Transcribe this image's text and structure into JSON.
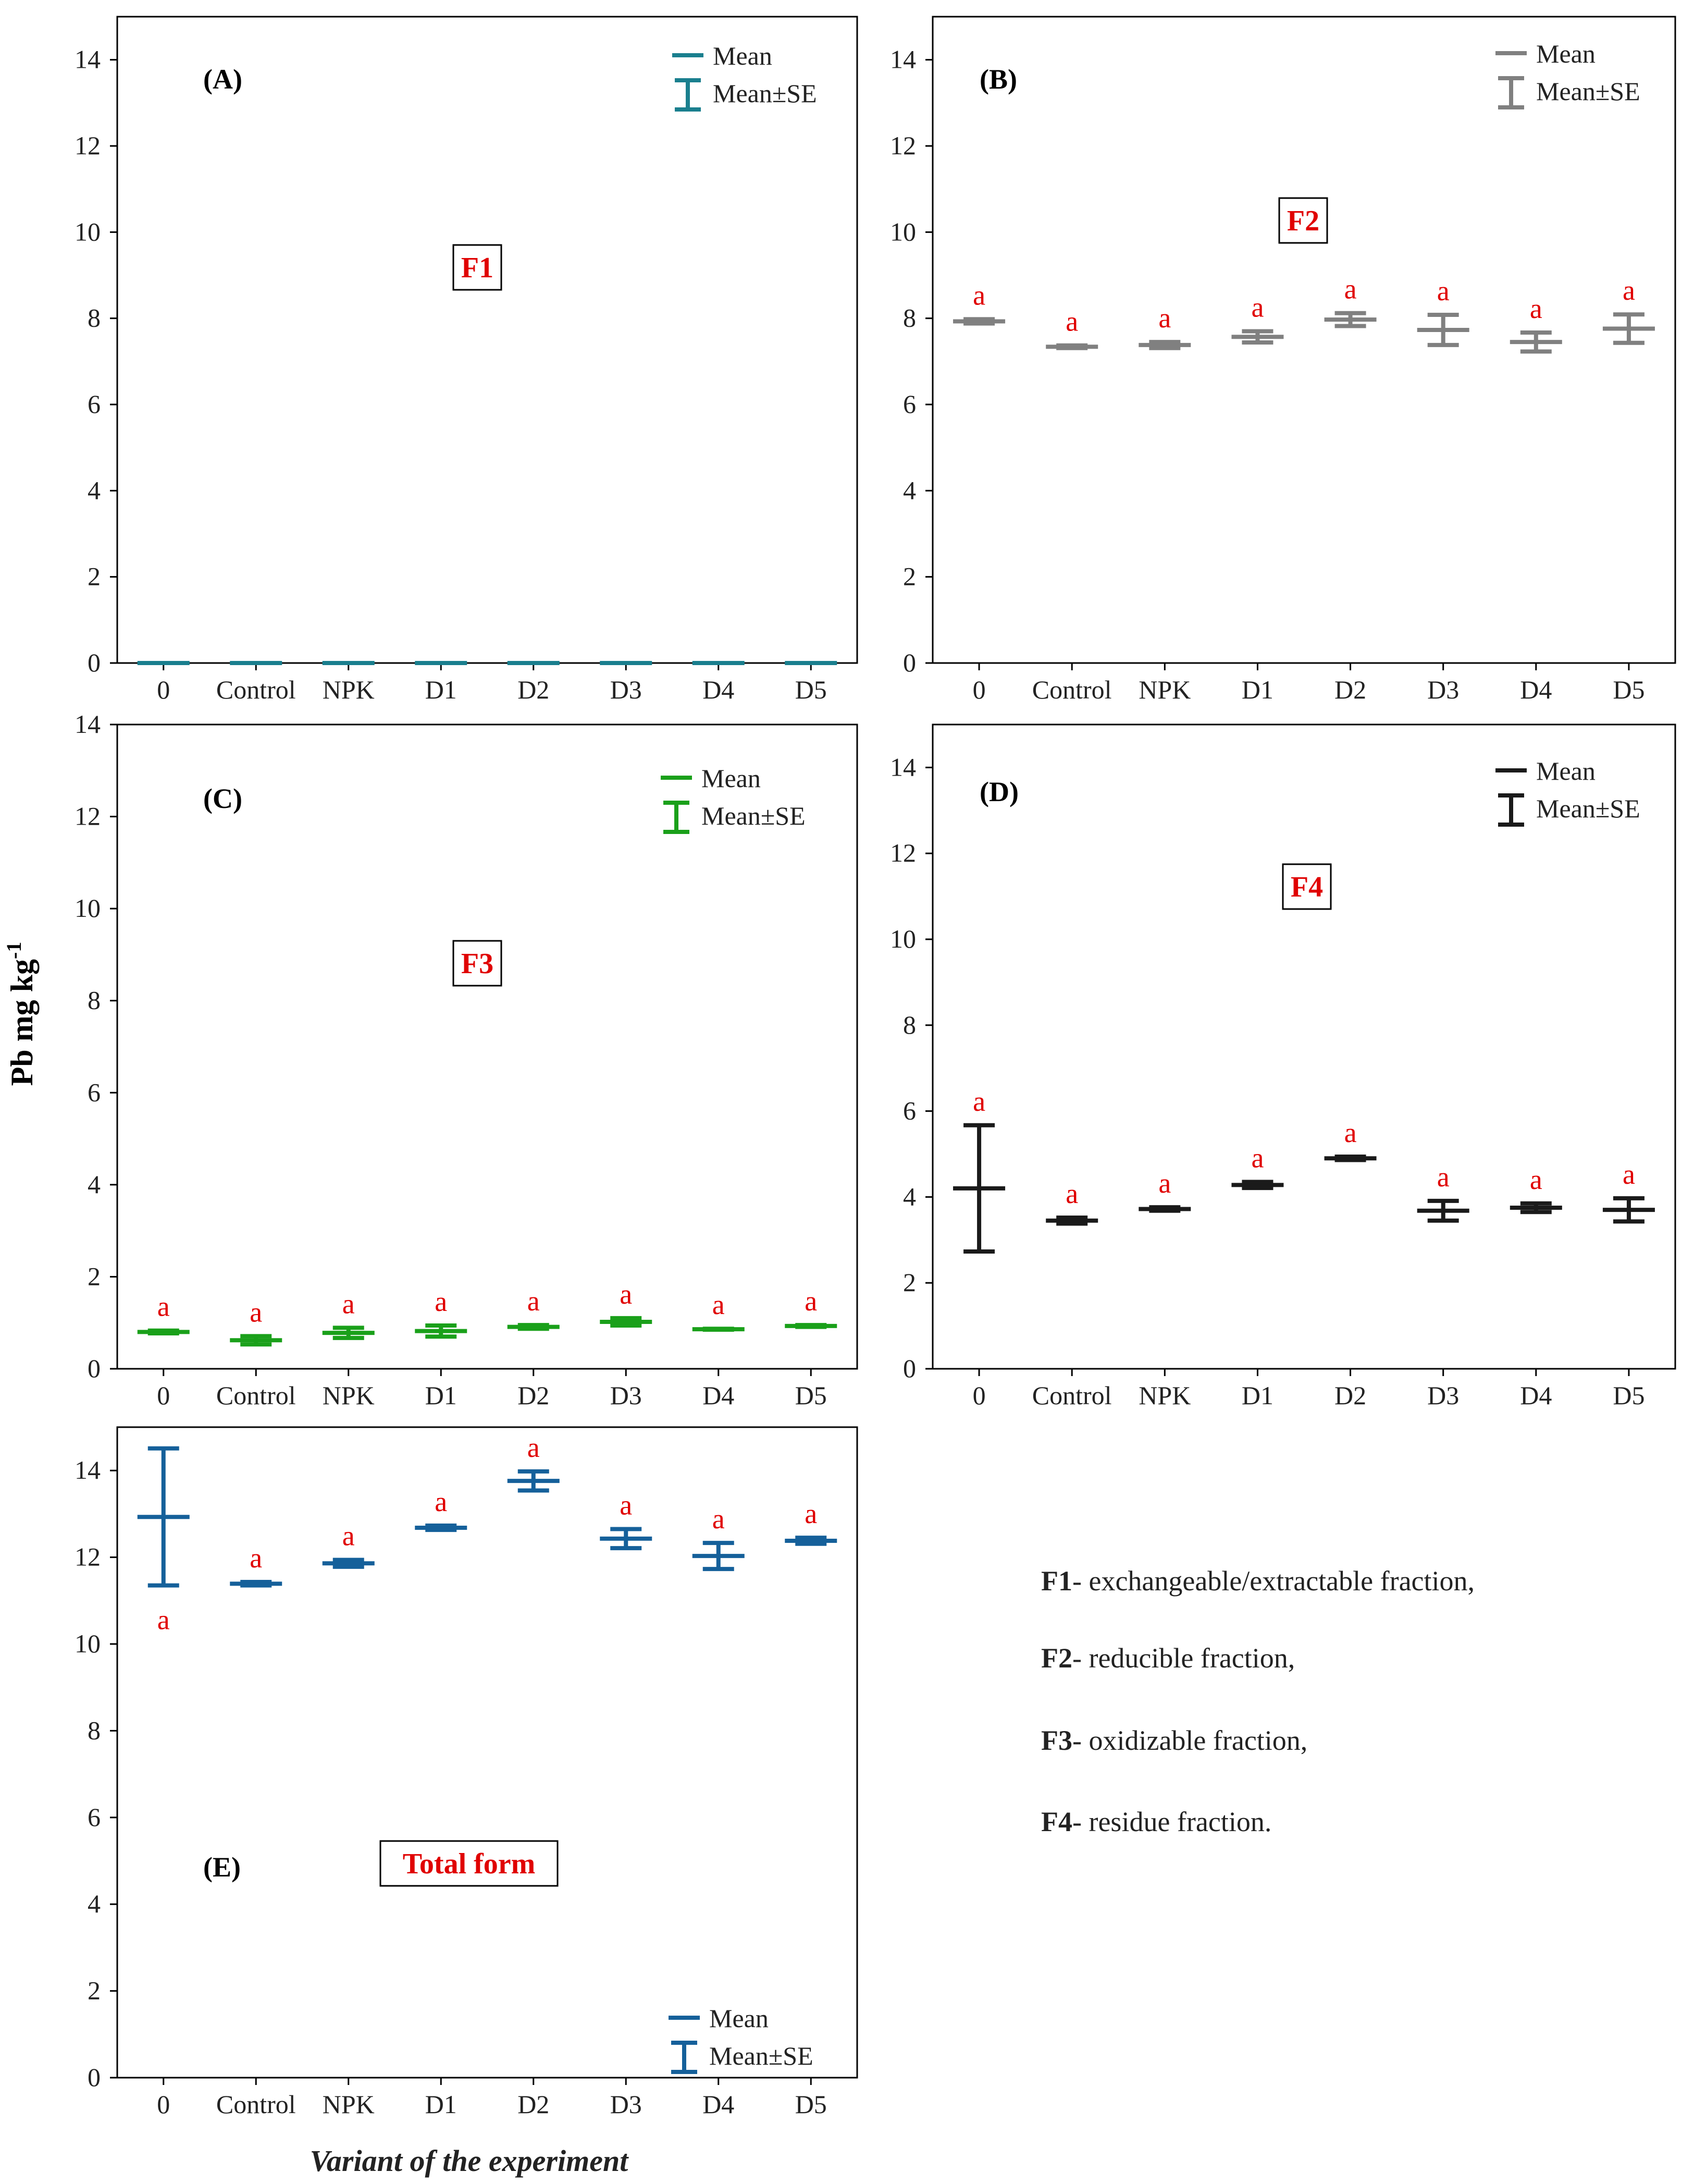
{
  "y_axis_label": "Pb mg kg",
  "y_axis_label_sup": "-1",
  "x_axis_label": "Variant of the experiment",
  "legend_labels": {
    "mean": "Mean",
    "mean_se": "Mean±SE"
  },
  "fraction_notes": [
    {
      "code": "F1",
      "text": "- exchangeable/extractable fraction,"
    },
    {
      "code": "F2",
      "text": "- reducible fraction,"
    },
    {
      "code": "F3",
      "text": "- oxidizable fraction,"
    },
    {
      "code": "F4",
      "text": "- residue fraction."
    }
  ],
  "chart_data": [
    {
      "type": "errorbar",
      "panel_letter": "(A)",
      "title": "F1",
      "color": "#1a7f8e",
      "categories": [
        "0",
        "Control",
        "NPK",
        "D1",
        "D2",
        "D3",
        "D4",
        "D5"
      ],
      "mean": [
        0,
        0,
        0,
        0,
        0,
        0,
        0,
        0
      ],
      "se": [
        0,
        0,
        0,
        0,
        0,
        0,
        0,
        0
      ],
      "letters": [],
      "ylim": [
        0,
        15
      ],
      "yticks": [
        0,
        2,
        4,
        6,
        8,
        10,
        12,
        14
      ]
    },
    {
      "type": "errorbar",
      "panel_letter": "(B)",
      "title": "F2",
      "color": "#808080",
      "categories": [
        "0",
        "Control",
        "NPK",
        "D1",
        "D2",
        "D3",
        "D4",
        "D5"
      ],
      "mean": [
        7.93,
        7.34,
        7.38,
        7.57,
        7.97,
        7.73,
        7.45,
        7.76
      ],
      "se": [
        0.05,
        0.03,
        0.07,
        0.13,
        0.15,
        0.35,
        0.22,
        0.33
      ],
      "letters": [
        "a",
        "a",
        "a",
        "a",
        "a",
        "a",
        "a",
        "a"
      ],
      "letter_above": [
        true,
        true,
        true,
        true,
        true,
        true,
        true,
        true
      ],
      "ylim": [
        0,
        15
      ],
      "yticks": [
        0,
        2,
        4,
        6,
        8,
        10,
        12,
        14
      ]
    },
    {
      "type": "errorbar",
      "panel_letter": "(C)",
      "title": "F3",
      "color": "#1aa01a",
      "categories": [
        "0",
        "Control",
        "NPK",
        "D1",
        "D2",
        "D3",
        "D4",
        "D5"
      ],
      "mean": [
        0.8,
        0.62,
        0.78,
        0.82,
        0.91,
        1.02,
        0.86,
        0.93
      ],
      "se": [
        0.03,
        0.09,
        0.11,
        0.12,
        0.04,
        0.08,
        0.01,
        0.02
      ],
      "letters": [
        "a",
        "a",
        "a",
        "a",
        "a",
        "a",
        "a",
        "a"
      ],
      "letter_above": [
        true,
        true,
        true,
        true,
        true,
        true,
        true,
        true
      ],
      "ylim": [
        0,
        14
      ],
      "yticks": [
        0,
        2,
        4,
        6,
        8,
        10,
        12,
        14
      ]
    },
    {
      "type": "errorbar",
      "panel_letter": "(D)",
      "title": "F4",
      "color": "#1a1a1a",
      "categories": [
        "0",
        "Control",
        "NPK",
        "D1",
        "D2",
        "D3",
        "D4",
        "D5"
      ],
      "mean": [
        4.2,
        3.45,
        3.72,
        4.28,
        4.9,
        3.68,
        3.75,
        3.7
      ],
      "se": [
        1.47,
        0.07,
        0.04,
        0.07,
        0.04,
        0.23,
        0.1,
        0.27
      ],
      "letters": [
        "a",
        "a",
        "a",
        "a",
        "a",
        "a",
        "a",
        "a"
      ],
      "letter_above": [
        true,
        true,
        true,
        true,
        true,
        true,
        true,
        true
      ],
      "ylim": [
        0,
        15
      ],
      "yticks": [
        0,
        2,
        4,
        6,
        8,
        10,
        12,
        14
      ]
    },
    {
      "type": "errorbar",
      "panel_letter": "(E)",
      "title": "Total form",
      "color": "#15609a",
      "categories": [
        "0",
        "Control",
        "NPK",
        "D1",
        "D2",
        "D3",
        "D4",
        "D5"
      ],
      "mean": [
        12.93,
        11.39,
        11.86,
        12.68,
        13.76,
        12.43,
        12.03,
        12.38
      ],
      "se": [
        1.58,
        0.04,
        0.08,
        0.05,
        0.22,
        0.22,
        0.3,
        0.07
      ],
      "letters": [
        "a",
        "a",
        "a",
        "a",
        "a",
        "a",
        "a",
        "a"
      ],
      "letter_above": [
        false,
        true,
        true,
        true,
        true,
        true,
        true,
        true
      ],
      "ylim": [
        0,
        15
      ],
      "yticks": [
        0,
        2,
        4,
        6,
        8,
        10,
        12,
        14
      ]
    }
  ]
}
